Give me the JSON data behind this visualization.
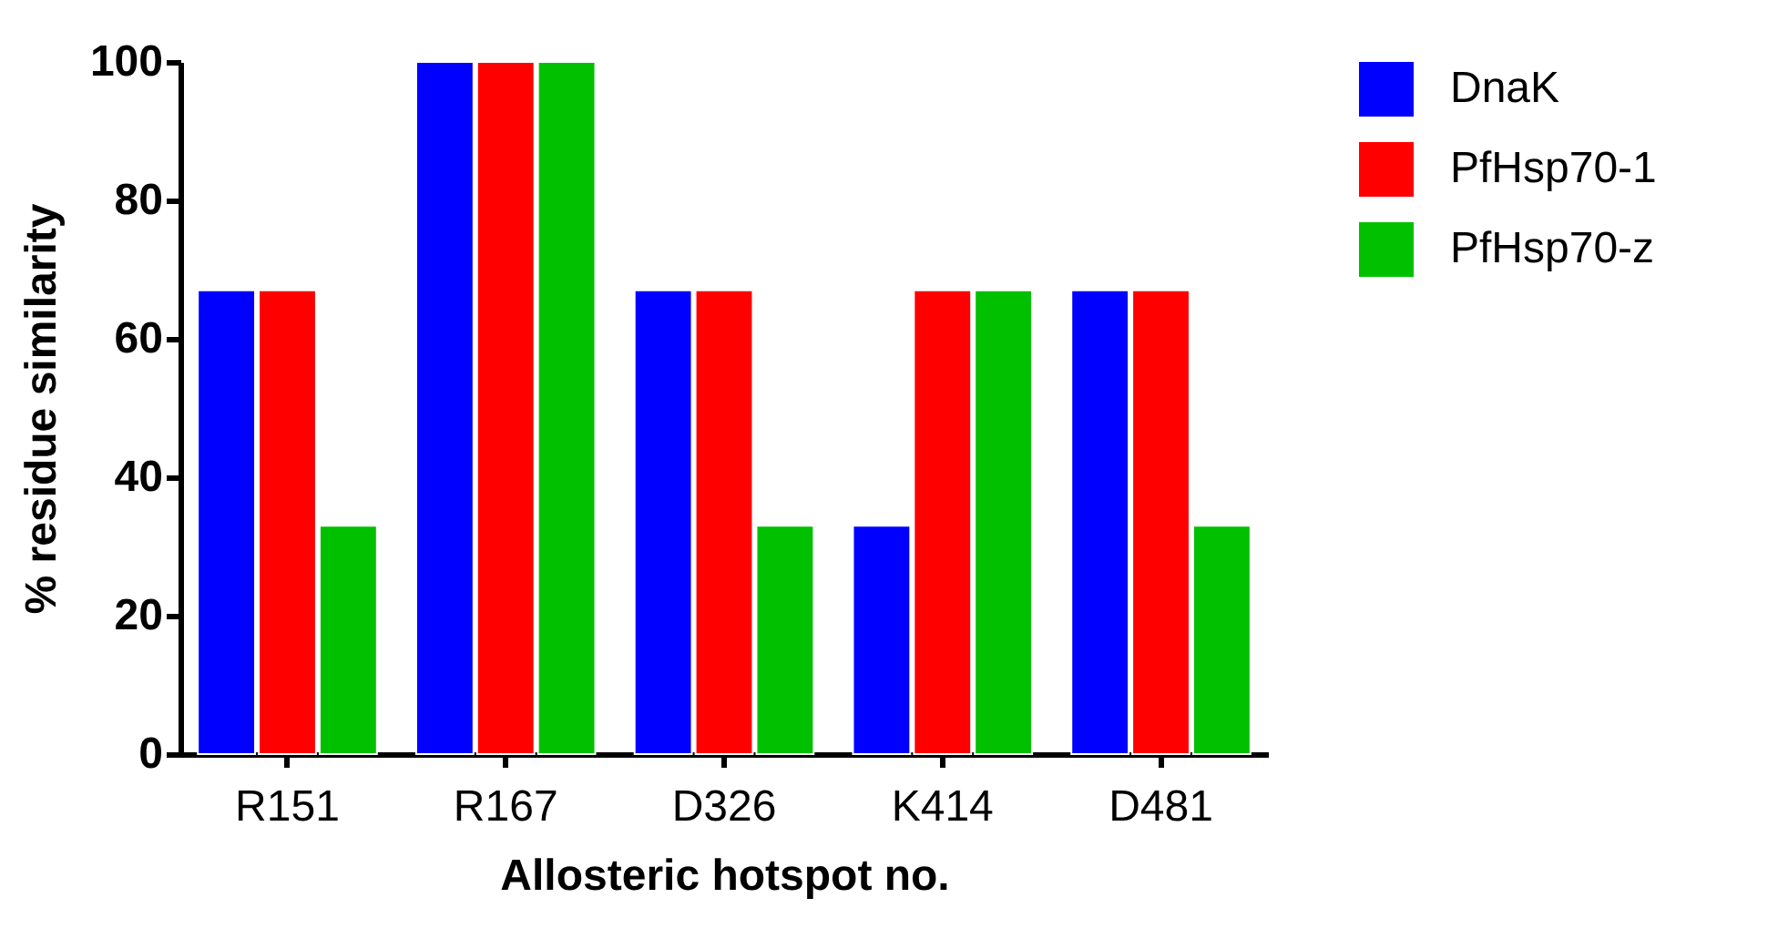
{
  "chart_data": {
    "type": "bar",
    "xlabel": "Allosteric hotspot no.",
    "ylabel": "% residue similarity",
    "categories": [
      "R151",
      "R167",
      "D326",
      "K414",
      "D481"
    ],
    "series": [
      {
        "name": "DnaK",
        "color": "#0000ff",
        "values": [
          67,
          100,
          67,
          33,
          67
        ]
      },
      {
        "name": "PfHsp70-1",
        "color": "#ff0000",
        "values": [
          67,
          100,
          67,
          67,
          67
        ]
      },
      {
        "name": "PfHsp70-z",
        "color": "#00c000",
        "values": [
          33,
          100,
          33,
          67,
          33
        ]
      }
    ],
    "ylim": [
      0,
      100
    ],
    "yticks": [
      0,
      20,
      40,
      60,
      80,
      100
    ],
    "grid": false,
    "legend": "top right"
  }
}
